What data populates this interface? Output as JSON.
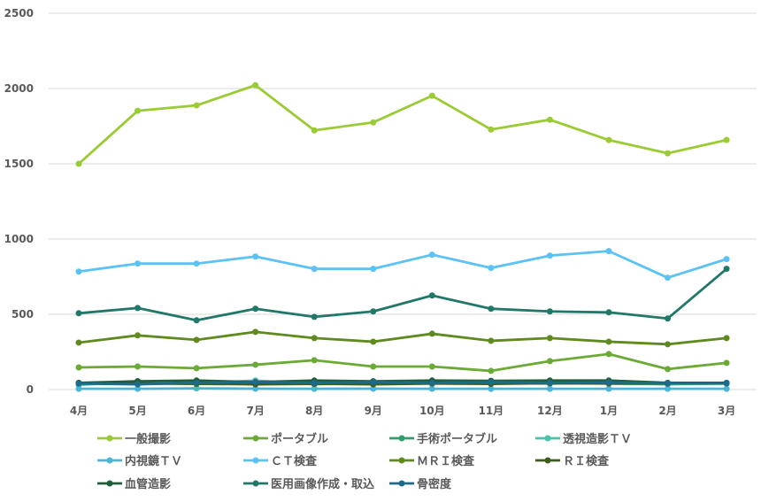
{
  "chart_data": {
    "type": "line",
    "title": "",
    "xlabel": "",
    "ylabel": "",
    "ylim": [
      0,
      2500
    ],
    "yticks": [
      0,
      500,
      1000,
      1500,
      2000,
      2500
    ],
    "grid": true,
    "legend_position": "bottom",
    "categories": [
      "4月",
      "5月",
      "6月",
      "7月",
      "8月",
      "9月",
      "10月",
      "11月",
      "12月",
      "1月",
      "2月",
      "3月"
    ],
    "series": [
      {
        "name": "一般撮影",
        "color": "#9acb34",
        "values": [
          1500,
          1852,
          1888,
          2022,
          1722,
          1775,
          1952,
          1728,
          1793,
          1658,
          1570,
          1658
        ]
      },
      {
        "name": "ポータブル",
        "color": "#6aaa35",
        "values": [
          147,
          153,
          142,
          165,
          195,
          153,
          153,
          124,
          189,
          236,
          136,
          177
        ]
      },
      {
        "name": "手術ポータブル",
        "color": "#2e9e6e",
        "values": [
          40,
          45,
          42,
          48,
          40,
          38,
          45,
          42,
          40,
          44,
          38,
          40
        ]
      },
      {
        "name": "透視造影ＴＶ",
        "color": "#45c4a8",
        "values": [
          30,
          55,
          40,
          60,
          35,
          45,
          40,
          50,
          45,
          40,
          35,
          40
        ]
      },
      {
        "name": "内視鏡ＴＶ",
        "color": "#4bb5d3",
        "values": [
          5,
          5,
          8,
          6,
          5,
          6,
          5,
          5,
          5,
          5,
          5,
          5
        ]
      },
      {
        "name": "ＣＴ検査",
        "color": "#5ac2f5",
        "values": [
          784,
          837,
          837,
          884,
          802,
          802,
          896,
          808,
          890,
          920,
          743,
          867
        ]
      },
      {
        "name": "ＭＲＩ検査",
        "color": "#5f8a1e",
        "values": [
          312,
          360,
          330,
          383,
          342,
          318,
          371,
          324,
          342,
          318,
          301,
          342
        ]
      },
      {
        "name": "ＲＩ検査",
        "color": "#3d5e1a",
        "values": [
          42,
          40,
          38,
          35,
          38,
          35,
          40,
          38,
          42,
          40,
          40,
          42
        ]
      },
      {
        "name": "血管造影",
        "color": "#1f5e38",
        "values": [
          45,
          55,
          60,
          50,
          60,
          55,
          60,
          58,
          60,
          60,
          45,
          45
        ]
      },
      {
        "name": "医用画像作成・取込",
        "color": "#217868",
        "values": [
          507,
          542,
          460,
          537,
          483,
          519,
          625,
          537,
          519,
          513,
          472,
          802
        ]
      },
      {
        "name": "骨密度",
        "color": "#1e6a8a",
        "values": [
          40,
          35,
          45,
          50,
          45,
          50,
          45,
          50,
          45,
          48,
          42,
          42
        ]
      }
    ]
  }
}
